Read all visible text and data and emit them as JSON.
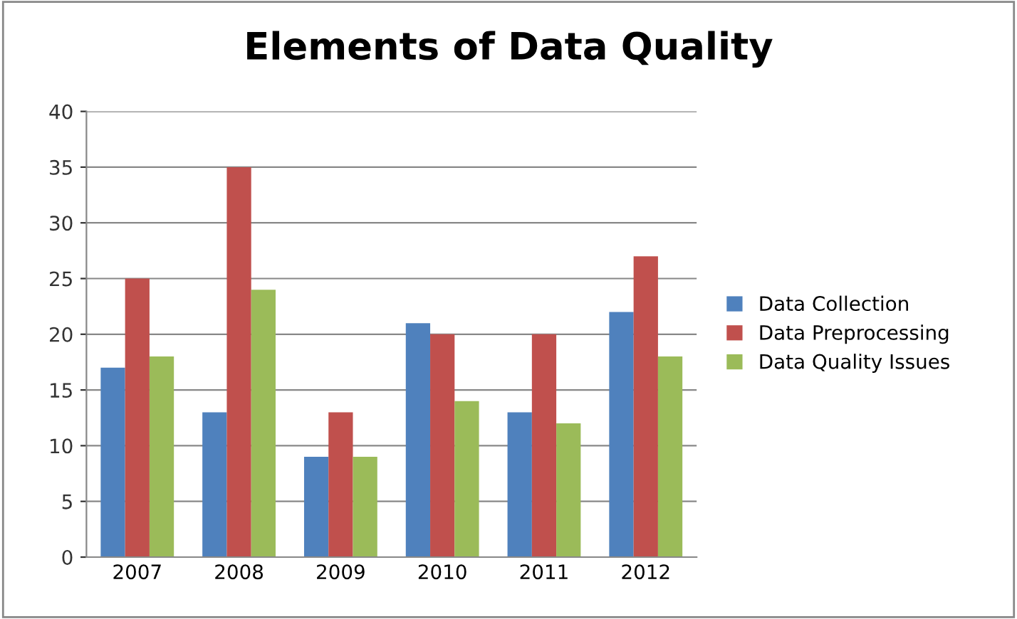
{
  "chart_data": {
    "type": "bar",
    "title": "Elements of Data Quality",
    "categories": [
      "2007",
      "2008",
      "2009",
      "2010",
      "2011",
      "2012"
    ],
    "series": [
      {
        "name": "Data Collection",
        "color": "#4f81bd",
        "values": [
          17,
          13,
          9,
          21,
          13,
          22
        ]
      },
      {
        "name": "Data Preprocessing",
        "color": "#c0504d",
        "values": [
          25,
          35,
          13,
          20,
          20,
          27
        ]
      },
      {
        "name": "Data Quality Issues",
        "color": "#9bbb59",
        "values": [
          18,
          24,
          9,
          14,
          12,
          18
        ]
      }
    ],
    "ylim": [
      0,
      40
    ],
    "yticks": [
      0,
      5,
      10,
      15,
      20,
      25,
      30,
      35,
      40
    ],
    "grid": "y",
    "legend": "right"
  }
}
